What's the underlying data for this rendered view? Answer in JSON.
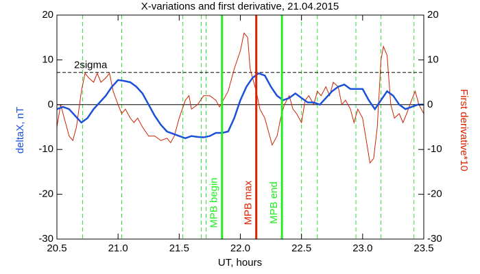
{
  "chart_data": {
    "type": "line",
    "title": "X-variations and first derivative, 21.04.2015",
    "xlabel": "UT, hours",
    "ylabel": "deltaX, nT",
    "y2label": "First derivative*10",
    "xlim": [
      20.5,
      23.5
    ],
    "xticks": [
      20.5,
      {
        "value": 21,
        "label": "21.0"
      },
      21.5,
      {
        "value": 22,
        "label": "22.0"
      },
      22.5,
      {
        "value": 23,
        "label": "23.0"
      },
      23.5
    ],
    "ylim": [
      -30,
      20
    ],
    "yticks": [
      -30,
      -20,
      -10,
      0,
      10,
      20
    ],
    "y2lim": [
      -30,
      20
    ],
    "y2ticks": [
      -30,
      -20,
      -10,
      0,
      10,
      20
    ],
    "zero_line": 0,
    "threshold": {
      "value": 7.2,
      "label": "2sigma"
    },
    "dashed_vlines": {
      "color": "#33dd33",
      "values": [
        20.71,
        21.03,
        21.53,
        21.68,
        21.72,
        22.5,
        22.63,
        22.945,
        23.15,
        23.42
      ]
    },
    "markers": [
      {
        "value": 21.85,
        "label": "MPB begin",
        "color": "#22ee22"
      },
      {
        "value": 22.13,
        "label": "MPB max",
        "color": "#dd2200"
      },
      {
        "value": 22.34,
        "label": "MPB end",
        "color": "#22ee22"
      }
    ],
    "series": [
      {
        "color": "#cc2200",
        "axis": "y2",
        "x": [
          20.5,
          20.53,
          20.56,
          20.6,
          20.63,
          20.66,
          20.7,
          20.73,
          20.76,
          20.8,
          20.83,
          20.86,
          20.9,
          20.93,
          20.96,
          21.0,
          21.03,
          21.06,
          21.1,
          21.13,
          21.16,
          21.2,
          21.25,
          21.3,
          21.35,
          21.4,
          21.43,
          21.46,
          21.5,
          21.55,
          21.58,
          21.6,
          21.65,
          21.7,
          21.75,
          21.8,
          21.83,
          21.86,
          21.9,
          21.95,
          22.0,
          22.03,
          22.06,
          22.08,
          22.1,
          22.13,
          22.16,
          22.2,
          22.23,
          22.26,
          22.3,
          22.33,
          22.36,
          22.4,
          22.43,
          22.46,
          22.5,
          22.53,
          22.56,
          22.6,
          22.63,
          22.66,
          22.7,
          22.73,
          22.76,
          22.8,
          22.83,
          22.86,
          22.9,
          22.93,
          22.96,
          23.0,
          23.03,
          23.06,
          23.09,
          23.12,
          23.15,
          23.17,
          23.2,
          23.23,
          23.26,
          23.3,
          23.33,
          23.36,
          23.4,
          23.43,
          23.46,
          23.5
        ],
        "values": [
          -5,
          0,
          -3,
          -7,
          -8,
          -5,
          3,
          7,
          6,
          5,
          7,
          5,
          6,
          7,
          3,
          0,
          -2,
          -1,
          -3,
          -4,
          -3,
          -5,
          -7,
          -7,
          -8,
          -7.5,
          -8.5,
          -7,
          -3,
          1,
          2,
          -1,
          0,
          2,
          2,
          1,
          -0.5,
          1,
          3,
          8,
          12,
          16,
          15,
          8,
          6,
          3,
          -1,
          -3,
          -6,
          -9,
          -7,
          -3,
          0,
          2,
          -1,
          -2,
          -4,
          1,
          2,
          0,
          3,
          2,
          4,
          2,
          5,
          4,
          0,
          1,
          -1,
          -4,
          -1,
          -3,
          -8,
          -13,
          -12,
          -5,
          10,
          13,
          11,
          0,
          -3,
          -2,
          -4,
          -2,
          1,
          3,
          0,
          -2
        ]
      },
      {
        "color": "#1a50d8",
        "axis": "y",
        "x": [
          20.5,
          20.55,
          20.6,
          20.65,
          20.7,
          20.75,
          20.8,
          20.85,
          20.9,
          20.95,
          21.0,
          21.05,
          21.1,
          21.15,
          21.2,
          21.25,
          21.3,
          21.35,
          21.4,
          21.45,
          21.5,
          21.55,
          21.6,
          21.65,
          21.7,
          21.75,
          21.8,
          21.85,
          21.9,
          21.95,
          22.0,
          22.05,
          22.1,
          22.15,
          22.2,
          22.25,
          22.3,
          22.35,
          22.4,
          22.45,
          22.5,
          22.55,
          22.6,
          22.65,
          22.7,
          22.75,
          22.8,
          22.85,
          22.9,
          22.95,
          23.0,
          23.05,
          23.1,
          23.15,
          23.2,
          23.25,
          23.3,
          23.35,
          23.4,
          23.45,
          23.5
        ],
        "values": [
          -1,
          -0.5,
          -1,
          -2.5,
          -4,
          -3,
          -1,
          0.5,
          2,
          4,
          5.5,
          5.3,
          5,
          4,
          2.5,
          0,
          -2.5,
          -4.5,
          -6,
          -6.5,
          -7,
          -7.5,
          -7,
          -7.2,
          -7.3,
          -7,
          -6.3,
          -6.3,
          -6,
          -3,
          1,
          4,
          6,
          7,
          6.5,
          4,
          2,
          1,
          1.5,
          2.5,
          1.5,
          0.5,
          0.5,
          0,
          1.5,
          3,
          4,
          4.5,
          3.5,
          3.5,
          3.5,
          1,
          -1,
          1,
          3,
          2,
          0,
          -1,
          -0.5,
          0,
          0
        ]
      }
    ]
  }
}
